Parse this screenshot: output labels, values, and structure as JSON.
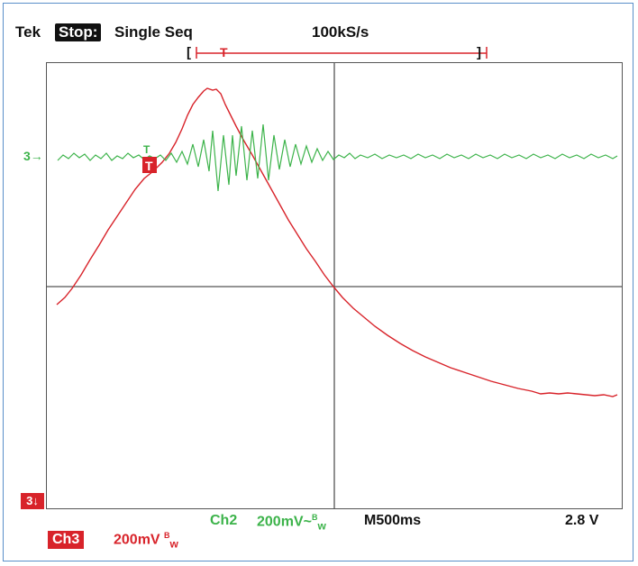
{
  "header": {
    "brand": "Tek",
    "status": "Stop:",
    "mode": "Single Seq",
    "sample_rate": "100kS/s"
  },
  "trigger_window": {
    "left_bracket": "[",
    "trigger_glyph": "T",
    "right_bracket": "]"
  },
  "markers": {
    "ch2_level_marker": "3→",
    "ch2_trigger_glyph": "T",
    "ch3_trigger_glyph": "T",
    "ch3_ref_badge": "3↓"
  },
  "footer": {
    "ch3_label": "Ch3",
    "ch3_scale": "200mV",
    "ch3_suffix_a": "B",
    "ch3_suffix_b": "w",
    "ch2_label": "Ch2",
    "ch2_scale": "200mV~",
    "ch2_suffix_a": "B",
    "ch2_suffix_b": "w",
    "timebase": "M500ms",
    "trigger_level": "2.8 V"
  },
  "colors": {
    "ch3": "#d8232a",
    "ch2": "#3cb34a",
    "grid": "#555555"
  }
}
